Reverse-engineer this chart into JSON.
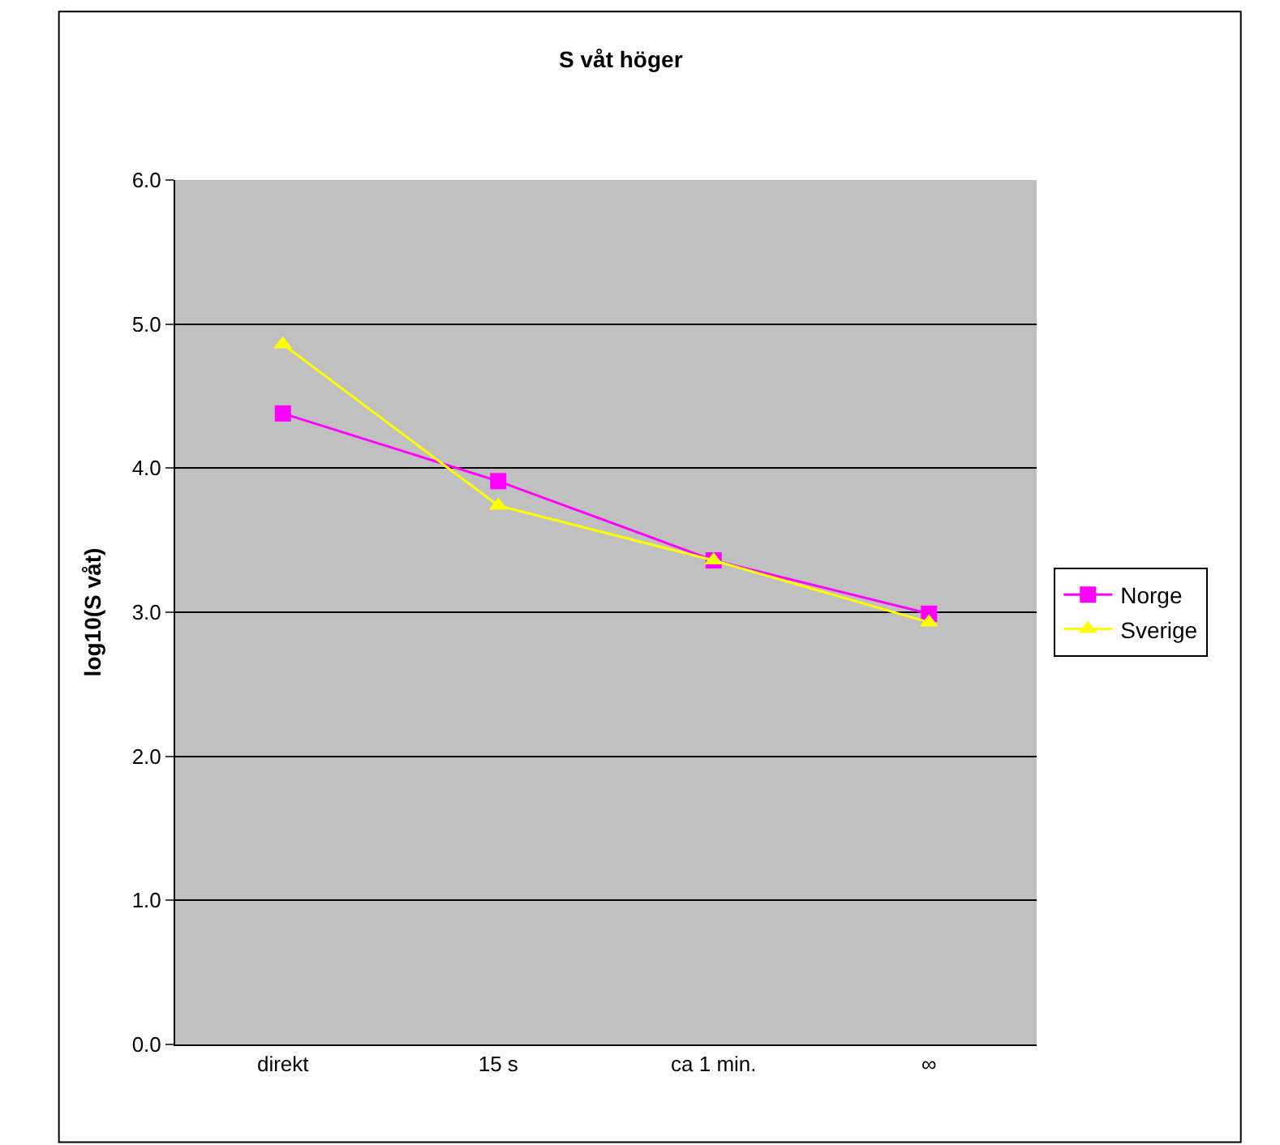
{
  "chart_data": {
    "type": "line",
    "title": "S våt höger",
    "ylabel": "log10(S våt)",
    "categories": [
      "direkt",
      "15 s",
      "ca 1 min.",
      "∞"
    ],
    "series": [
      {
        "name": "Norge",
        "color": "#ff00ff",
        "marker": "square",
        "values": [
          4.38,
          3.91,
          3.36,
          2.99
        ]
      },
      {
        "name": "Sverige",
        "color": "#ffff00",
        "marker": "triangle",
        "values": [
          4.86,
          3.74,
          3.36,
          2.93
        ]
      }
    ],
    "ylim": [
      0,
      6
    ],
    "yticks": [
      {
        "value": 0,
        "label": "0.0"
      },
      {
        "value": 1,
        "label": "1.0"
      },
      {
        "value": 2,
        "label": "2.0"
      },
      {
        "value": 3,
        "label": "3.0"
      },
      {
        "value": 4,
        "label": "4.0"
      },
      {
        "value": 5,
        "label": "5.0"
      },
      {
        "value": 6,
        "label": "6.0"
      }
    ],
    "grid": "y",
    "legend": "right",
    "line_style": "solid"
  }
}
